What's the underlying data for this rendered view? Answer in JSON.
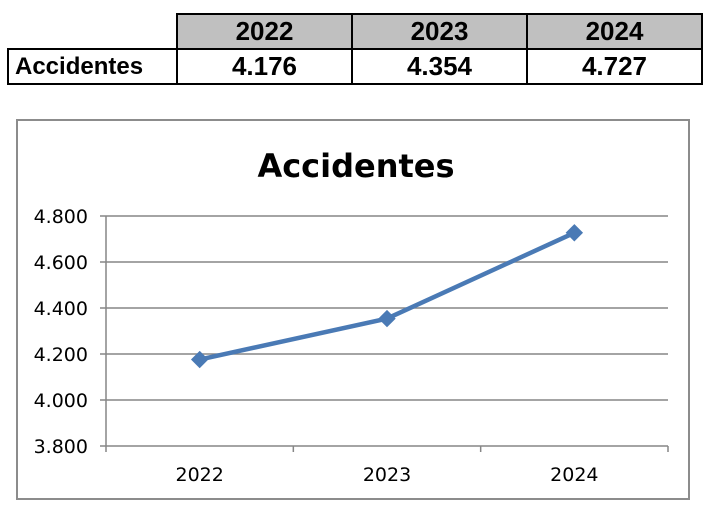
{
  "table": {
    "years": [
      "2022",
      "2023",
      "2024"
    ],
    "row_label": "Accidentes",
    "values": [
      "4.176",
      "4.354",
      "4.727"
    ]
  },
  "chart_data": {
    "type": "line",
    "title": "Accidentes",
    "categories": [
      "2022",
      "2023",
      "2024"
    ],
    "series": [
      {
        "values": [
          4176,
          4354,
          4727
        ],
        "color": "#4a7ab5",
        "marker": "diamond"
      }
    ],
    "ylim": [
      3800,
      4800
    ],
    "yticks": [
      3800,
      4000,
      4200,
      4400,
      4600,
      4800
    ],
    "ytick_labels": [
      "3.800",
      "4.000",
      "4.200",
      "4.400",
      "4.600",
      "4.800"
    ],
    "grid": true,
    "legend": "none"
  }
}
